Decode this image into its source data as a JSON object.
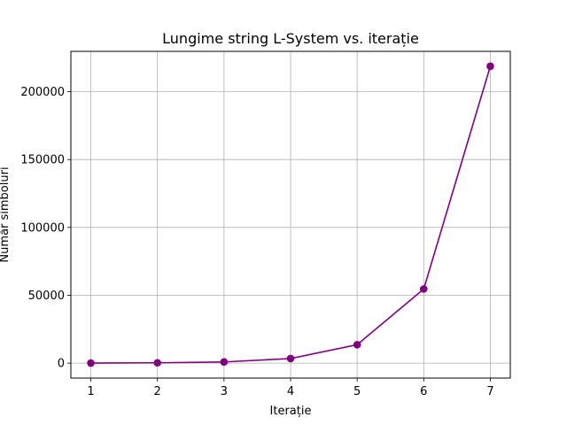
{
  "chart_data": {
    "type": "line",
    "title": "Lungime string L-System vs. iterație",
    "xlabel": "Iterație",
    "ylabel": "Număr simboluri",
    "x": [
      1,
      2,
      3,
      4,
      5,
      6,
      7
    ],
    "series": [
      {
        "values": [
          68,
          250,
          864,
          3386,
          13596,
          54624,
          218750
        ],
        "color": "#800080",
        "marker": "circle"
      }
    ],
    "xlim": [
      0.7,
      7.3
    ],
    "ylim": [
      -11000,
      229700
    ],
    "xticks": [
      "1",
      "2",
      "3",
      "4",
      "5",
      "6",
      "7"
    ],
    "yticks": [
      0,
      50000,
      100000,
      150000,
      200000
    ],
    "ytick_labels": [
      "0",
      "50000",
      "100000",
      "150000",
      "200000"
    ],
    "grid": true
  }
}
